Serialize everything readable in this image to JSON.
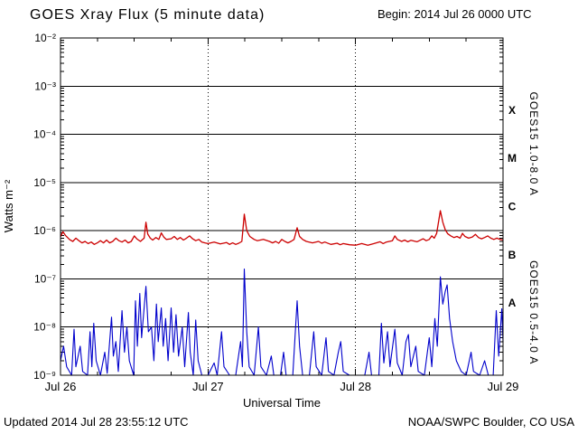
{
  "chart_data": {
    "type": "line",
    "title": "GOES Xray Flux (5 minute data)",
    "begin_label": "Begin: 2014 Jul 26 0000 UTC",
    "xlabel": "Universal Time",
    "ylabel": "Watts m⁻²",
    "x_axis": {
      "unit": "hours since 2014 Jul 26 0000 UTC",
      "range": [
        0,
        72
      ],
      "minor_tick_hours": 6,
      "ticks": [
        {
          "t": 0,
          "label": "Jul 26"
        },
        {
          "t": 24,
          "label": "Jul 27"
        },
        {
          "t": 48,
          "label": "Jul 28"
        },
        {
          "t": 72,
          "label": "Jul 29"
        }
      ],
      "dotted_gridlines_t": [
        24,
        48
      ]
    },
    "y_axis": {
      "scale": "log",
      "ylim": [
        1e-09,
        0.01
      ],
      "gridlines": "solid horizontal line at each decade",
      "ticks": [
        {
          "exp": -2,
          "label": "10⁻²"
        },
        {
          "exp": -3,
          "label": "10⁻³"
        },
        {
          "exp": -4,
          "label": "10⁻⁴"
        },
        {
          "exp": -5,
          "label": "10⁻⁵"
        },
        {
          "exp": -6,
          "label": "10⁻⁶"
        },
        {
          "exp": -7,
          "label": "10⁻⁷"
        },
        {
          "exp": -8,
          "label": "10⁻⁸"
        },
        {
          "exp": -9,
          "label": "10⁻⁹"
        }
      ]
    },
    "flare_classes": [
      {
        "label": "X",
        "log_center": -3.5
      },
      {
        "label": "M",
        "log_center": -4.5
      },
      {
        "label": "C",
        "log_center": -5.5
      },
      {
        "label": "B",
        "log_center": -6.5
      },
      {
        "label": "A",
        "log_center": -7.5
      }
    ],
    "series": [
      {
        "id": "xray-long",
        "name": "GOES15 1.0-8.0 A",
        "color": "#cc0000",
        "label_log_center": -4.2,
        "points": [
          [
            0,
            7.5e-07
          ],
          [
            0.4,
            9.5e-07
          ],
          [
            0.8,
            8e-07
          ],
          [
            1.5,
            6.5e-07
          ],
          [
            2,
            6e-07
          ],
          [
            2.5,
            7e-07
          ],
          [
            3,
            6.2e-07
          ],
          [
            3.5,
            5.6e-07
          ],
          [
            4,
            6e-07
          ],
          [
            4.5,
            5.4e-07
          ],
          [
            5,
            5.8e-07
          ],
          [
            5.5,
            5.2e-07
          ],
          [
            6,
            5.6e-07
          ],
          [
            6.5,
            6.2e-07
          ],
          [
            7,
            5.6e-07
          ],
          [
            7.5,
            6.4e-07
          ],
          [
            8,
            5.6e-07
          ],
          [
            8.5,
            6e-07
          ],
          [
            9,
            7e-07
          ],
          [
            9.5,
            6.2e-07
          ],
          [
            10,
            5.8e-07
          ],
          [
            10.5,
            6.4e-07
          ],
          [
            11,
            5.6e-07
          ],
          [
            11.5,
            6e-07
          ],
          [
            12,
            7.8e-07
          ],
          [
            12.4,
            6.8e-07
          ],
          [
            13,
            6e-07
          ],
          [
            13.6,
            7e-07
          ],
          [
            13.9,
            1.5e-06
          ],
          [
            14.2,
            8.5e-07
          ],
          [
            14.6,
            7e-07
          ],
          [
            15,
            6.4e-07
          ],
          [
            15.5,
            7.2e-07
          ],
          [
            16,
            6.6e-07
          ],
          [
            16.4,
            9e-07
          ],
          [
            16.8,
            7.4e-07
          ],
          [
            17.2,
            6.6e-07
          ],
          [
            18,
            6.8e-07
          ],
          [
            18.5,
            7.6e-07
          ],
          [
            19,
            6.6e-07
          ],
          [
            19.5,
            7.2e-07
          ],
          [
            20,
            6.4e-07
          ],
          [
            20.5,
            7e-07
          ],
          [
            21,
            7.8e-07
          ],
          [
            21.5,
            6.8e-07
          ],
          [
            22,
            6.2e-07
          ],
          [
            22.5,
            6.6e-07
          ],
          [
            23,
            5.8e-07
          ],
          [
            23.5,
            5.6e-07
          ],
          [
            24,
            5.4e-07
          ],
          [
            25,
            5.8e-07
          ],
          [
            26,
            5.3e-07
          ],
          [
            27,
            5.7e-07
          ],
          [
            27.5,
            5.2e-07
          ],
          [
            28,
            5.6e-07
          ],
          [
            28.5,
            5.2e-07
          ],
          [
            29,
            5.5e-07
          ],
          [
            29.5,
            6e-07
          ],
          [
            29.9,
            2.2e-06
          ],
          [
            30.3,
            1e-06
          ],
          [
            30.8,
            7.6e-07
          ],
          [
            31.5,
            6.6e-07
          ],
          [
            32,
            6.2e-07
          ],
          [
            33,
            6.6e-07
          ],
          [
            34,
            6e-07
          ],
          [
            34.5,
            5.6e-07
          ],
          [
            35,
            6e-07
          ],
          [
            35.5,
            5.5e-07
          ],
          [
            36,
            6.6e-07
          ],
          [
            36.5,
            6e-07
          ],
          [
            37,
            5.6e-07
          ],
          [
            37.5,
            6e-07
          ],
          [
            38,
            6.6e-07
          ],
          [
            38.5,
            1.15e-06
          ],
          [
            38.9,
            7.6e-07
          ],
          [
            39.4,
            6.6e-07
          ],
          [
            40,
            6e-07
          ],
          [
            41,
            5.6e-07
          ],
          [
            42,
            6e-07
          ],
          [
            42.5,
            5.5e-07
          ],
          [
            43,
            5.8e-07
          ],
          [
            44,
            5.2e-07
          ],
          [
            45,
            5.5e-07
          ],
          [
            45.5,
            5.1e-07
          ],
          [
            46,
            5.4e-07
          ],
          [
            47,
            5.1e-07
          ],
          [
            48,
            5e-07
          ],
          [
            49,
            5.4e-07
          ],
          [
            50,
            5e-07
          ],
          [
            51,
            5.4e-07
          ],
          [
            52,
            5.9e-07
          ],
          [
            52.5,
            5.4e-07
          ],
          [
            53,
            5.8e-07
          ],
          [
            54,
            6.2e-07
          ],
          [
            54.4,
            7.8e-07
          ],
          [
            54.8,
            6.6e-07
          ],
          [
            55.5,
            6e-07
          ],
          [
            56,
            6.4e-07
          ],
          [
            56.5,
            5.9e-07
          ],
          [
            57,
            6.3e-07
          ],
          [
            58,
            5.9e-07
          ],
          [
            59,
            6.8e-07
          ],
          [
            59.5,
            6.2e-07
          ],
          [
            60,
            6.6e-07
          ],
          [
            60.4,
            7.8e-07
          ],
          [
            60.8,
            7e-07
          ],
          [
            61.2,
            8.8e-07
          ],
          [
            61.8,
            2.6e-06
          ],
          [
            62.2,
            1.5e-06
          ],
          [
            62.6,
            1.05e-06
          ],
          [
            63,
            8.6e-07
          ],
          [
            63.5,
            7.8e-07
          ],
          [
            64,
            7.2e-07
          ],
          [
            64.5,
            7.6e-07
          ],
          [
            65,
            7e-07
          ],
          [
            65.4,
            8.8e-07
          ],
          [
            65.8,
            7.6e-07
          ],
          [
            66.4,
            7e-07
          ],
          [
            67,
            7.4e-07
          ],
          [
            67.5,
            8.4e-07
          ],
          [
            68,
            7.2e-07
          ],
          [
            68.5,
            6.8e-07
          ],
          [
            69,
            7.2e-07
          ],
          [
            69.5,
            7.8e-07
          ],
          [
            70,
            7e-07
          ],
          [
            70.5,
            6.6e-07
          ],
          [
            71,
            7e-07
          ],
          [
            71.5,
            6.6e-07
          ],
          [
            72,
            6.4e-07
          ]
        ]
      },
      {
        "id": "xray-short",
        "name": "GOES15 0.5-4.0 A",
        "color": "#0000cc",
        "label_log_center": -7.7,
        "points": [
          [
            0,
            2e-09
          ],
          [
            0.5,
            4e-09
          ],
          [
            1,
            1.5e-09
          ],
          [
            1.8,
            1e-09
          ],
          [
            2.2,
            9e-09
          ],
          [
            2.5,
            1.5e-09
          ],
          [
            3.2,
            4e-09
          ],
          [
            3.6,
            1.2e-09
          ],
          [
            4.4,
            1e-09
          ],
          [
            4.8,
            8e-09
          ],
          [
            5.1,
            1.5e-09
          ],
          [
            5.4,
            1.2e-08
          ],
          [
            5.8,
            2e-09
          ],
          [
            6.5,
            1e-09
          ],
          [
            7.2,
            3e-09
          ],
          [
            7.6,
            1.1e-09
          ],
          [
            8.3,
            1.6e-08
          ],
          [
            8.6,
            2.5e-09
          ],
          [
            9,
            5e-09
          ],
          [
            9.4,
            1.2e-09
          ],
          [
            10,
            2.2e-08
          ],
          [
            10.4,
            3e-09
          ],
          [
            10.8,
            1e-08
          ],
          [
            11.2,
            2e-09
          ],
          [
            11.9,
            1e-09
          ],
          [
            12.2,
            3.5e-08
          ],
          [
            12.5,
            4e-09
          ],
          [
            12.9,
            5e-08
          ],
          [
            13.2,
            6e-09
          ],
          [
            13.9,
            7e-08
          ],
          [
            14.3,
            8e-09
          ],
          [
            14.8,
            1e-08
          ],
          [
            15.2,
            2e-09
          ],
          [
            15.6,
            3e-08
          ],
          [
            15.9,
            5e-09
          ],
          [
            16.4,
            2.5e-08
          ],
          [
            16.7,
            4e-09
          ],
          [
            17.1,
            1.5e-08
          ],
          [
            17.5,
            2e-09
          ],
          [
            18,
            2.5e-08
          ],
          [
            18.4,
            3e-09
          ],
          [
            18.8,
            1.8e-08
          ],
          [
            19.2,
            2.5e-09
          ],
          [
            19.8,
            1e-08
          ],
          [
            20.2,
            1.5e-09
          ],
          [
            20.8,
            2e-08
          ],
          [
            21.1,
            3e-09
          ],
          [
            21.6,
            1e-09
          ],
          [
            22,
            1.4e-08
          ],
          [
            22.4,
            2e-09
          ],
          [
            23,
            1e-09
          ],
          [
            24,
            1e-09
          ],
          [
            25,
            1.8e-09
          ],
          [
            25.5,
            1e-09
          ],
          [
            26.2,
            8e-09
          ],
          [
            26.6,
            1.5e-09
          ],
          [
            27.5,
            1e-09
          ],
          [
            28.5,
            1e-09
          ],
          [
            29.3,
            5e-09
          ],
          [
            29.6,
            1.5e-09
          ],
          [
            29.9,
            1.6e-07
          ],
          [
            30.3,
            8e-09
          ],
          [
            30.7,
            1.5e-09
          ],
          [
            31.5,
            1e-09
          ],
          [
            32.2,
            1e-08
          ],
          [
            32.6,
            1.5e-09
          ],
          [
            33.5,
            1e-09
          ],
          [
            34.3,
            2.5e-09
          ],
          [
            34.7,
            1e-09
          ],
          [
            35.8,
            1e-09
          ],
          [
            36.3,
            3e-09
          ],
          [
            36.7,
            1e-09
          ],
          [
            37.8,
            1e-09
          ],
          [
            38.5,
            3.5e-08
          ],
          [
            38.9,
            4e-09
          ],
          [
            39.4,
            1e-09
          ],
          [
            40.5,
            1e-09
          ],
          [
            41.2,
            8e-09
          ],
          [
            41.6,
            1.5e-09
          ],
          [
            42.5,
            1e-09
          ],
          [
            43.2,
            6e-09
          ],
          [
            43.6,
            1.2e-09
          ],
          [
            44.5,
            1e-09
          ],
          [
            45.2,
            3e-09
          ],
          [
            45.6,
            5e-09
          ],
          [
            46,
            1.2e-09
          ],
          [
            47,
            1e-09
          ],
          [
            48,
            1e-09
          ],
          [
            49.5,
            1e-09
          ],
          [
            50.2,
            3e-09
          ],
          [
            50.6,
            1e-09
          ],
          [
            51.8,
            1e-09
          ],
          [
            52.2,
            1.2e-08
          ],
          [
            52.6,
            1.8e-09
          ],
          [
            53.2,
            8e-09
          ],
          [
            53.6,
            1.5e-09
          ],
          [
            54.4,
            9e-09
          ],
          [
            54.8,
            1.8e-09
          ],
          [
            55.6,
            1e-09
          ],
          [
            56.2,
            5e-09
          ],
          [
            56.6,
            7e-09
          ],
          [
            57,
            1.5e-09
          ],
          [
            57.8,
            4e-09
          ],
          [
            58.2,
            1.2e-09
          ],
          [
            59.2,
            1e-09
          ],
          [
            60,
            6e-09
          ],
          [
            60.4,
            1.5e-09
          ],
          [
            60.9,
            1.5e-08
          ],
          [
            61.3,
            4e-09
          ],
          [
            61.8,
            1.1e-07
          ],
          [
            62.2,
            3e-08
          ],
          [
            62.6,
            5.5e-08
          ],
          [
            62.9,
            7.5e-08
          ],
          [
            63.3,
            1.5e-08
          ],
          [
            63.8,
            5e-09
          ],
          [
            64.4,
            2e-09
          ],
          [
            65.2,
            1.2e-09
          ],
          [
            66,
            1e-09
          ],
          [
            66.8,
            3e-09
          ],
          [
            67.2,
            1.2e-09
          ],
          [
            68.2,
            1e-09
          ],
          [
            69,
            2e-09
          ],
          [
            69.6,
            1e-09
          ],
          [
            70.4,
            1e-09
          ],
          [
            70.9,
            2.2e-08
          ],
          [
            71.3,
            2.5e-09
          ],
          [
            71.8,
            2.4e-08
          ],
          [
            72,
            5e-09
          ]
        ]
      }
    ],
    "legend_position": "rotated labels along right edge",
    "grid": "horizontal solid per decade; vertical dotted at day boundaries"
  },
  "footer": {
    "updated": "Updated 2014 Jul 28 23:55:12 UTC",
    "credit": "NOAA/SWPC Boulder, CO USA"
  },
  "colors": {
    "background": "#ffffff",
    "axis": "#000000",
    "long_channel": "#cc0000",
    "short_channel": "#0000cc"
  }
}
